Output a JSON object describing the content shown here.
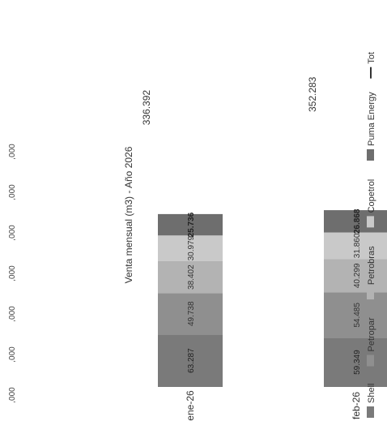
{
  "chart_data": {
    "type": "bar",
    "stacked": true,
    "orientation": "horizontal",
    "title": "Venta mensual (m3) - Año 2026",
    "categories": [
      "ene-26",
      "feb-26"
    ],
    "series": [
      {
        "name": "Shell",
        "values": [
          63287,
          59349
        ],
        "color": "#7a7a7a"
      },
      {
        "name": "Petropar",
        "values": [
          49738,
          54485
        ],
        "color": "#8f8f8f"
      },
      {
        "name": "Petrobras",
        "values": [
          38402,
          40299
        ],
        "color": "#b3b3b3"
      },
      {
        "name": "Copetrol",
        "values": [
          30979,
          31860
        ],
        "color": "#c9c9c9"
      },
      {
        "name": "Puma Energy",
        "values": [
          25736,
          26868
        ],
        "color": "#6e6e6e"
      }
    ],
    "value_labels": [
      [
        "63.287",
        "49.738",
        "38.402",
        "30.979",
        "25.736"
      ],
      [
        "59.349",
        "54.485",
        "40.299",
        "31.860",
        "26.868"
      ]
    ],
    "total": {
      "name": "Tot",
      "values": [
        336392,
        352283
      ],
      "labels": [
        "336.392",
        "352.283"
      ]
    },
    "axis_tick_labels": [
      ",000",
      ",000",
      ",000",
      ",000",
      ",000",
      ",000",
      ",000"
    ],
    "legend_position": "bottom",
    "grid": false
  }
}
